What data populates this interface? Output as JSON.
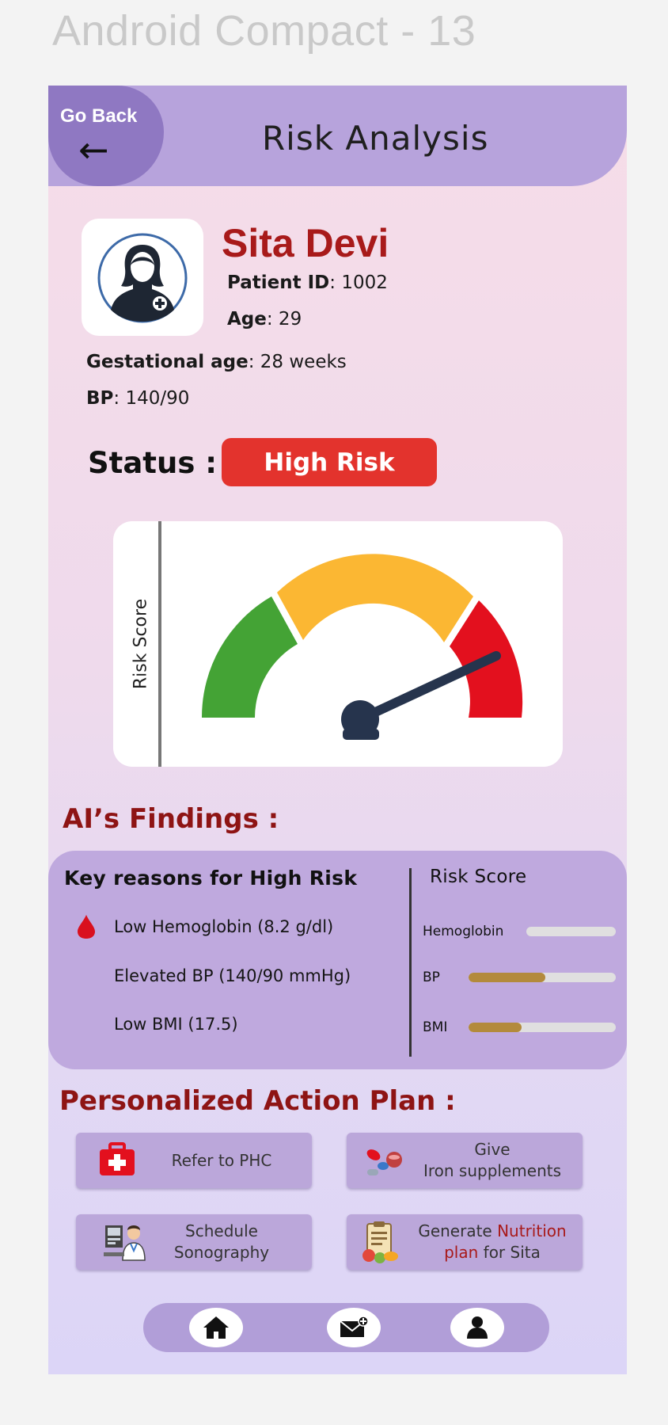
{
  "frame": {
    "title": "Android Compact - 13"
  },
  "header": {
    "back_label": "Go Back",
    "back_arrow": "←",
    "title": "Risk Analysis"
  },
  "patient": {
    "name": "Sita Devi",
    "id_label": "Patient ID",
    "id_value": ": 1002",
    "age_label": "Age",
    "age_value": ": 29",
    "gest_label": "Gestational age",
    "gest_value": ": 28 weeks",
    "bp_label": "BP",
    "bp_value": ": 140/90"
  },
  "status": {
    "label": "Status :",
    "value": "High Risk",
    "color": "#e3332d"
  },
  "gauge": {
    "y_label": "Risk Score",
    "zones": [
      {
        "name": "low",
        "color": "#44a335"
      },
      {
        "name": "medium",
        "color": "#fbb733"
      },
      {
        "name": "high",
        "color": "#e3101e"
      }
    ],
    "needle_icon": "gauge-needle-icon"
  },
  "findings": {
    "heading": "AI’s Findings :",
    "reasons_title": "Key reasons for High Risk",
    "reasons": [
      {
        "text": "Low Hemoglobin (8.2 g/dl)",
        "icon": "blood-drop-icon"
      },
      {
        "text": "Elevated BP (140/90 mmHg)"
      },
      {
        "text": "Low BMI (17.5)"
      }
    ],
    "score_title": "Risk Score",
    "scores": [
      {
        "label": "Hemoglobin",
        "fraction": 0.0
      },
      {
        "label": "BP",
        "fraction": 0.52
      },
      {
        "label": "BMI",
        "fraction": 0.36
      }
    ]
  },
  "action_plan": {
    "heading": "Personalized Action Plan :",
    "refer": {
      "text": "Refer to PHC",
      "icon": "first-aid-kit-icon"
    },
    "iron": {
      "line1": "Give",
      "line2": "Iron supplements",
      "icon": "pills-icon"
    },
    "sono": {
      "line1": "Schedule",
      "line2": "Sonography",
      "icon": "doctor-monitor-icon"
    },
    "nutrition": {
      "part1": "Generate ",
      "part2": "Nutrition",
      "part3": "plan",
      "part4": " for Sita",
      "icon": "nutrition-clipboard-icon"
    }
  },
  "nav": {
    "items": [
      "home-icon",
      "mail-icon",
      "profile-icon"
    ]
  }
}
